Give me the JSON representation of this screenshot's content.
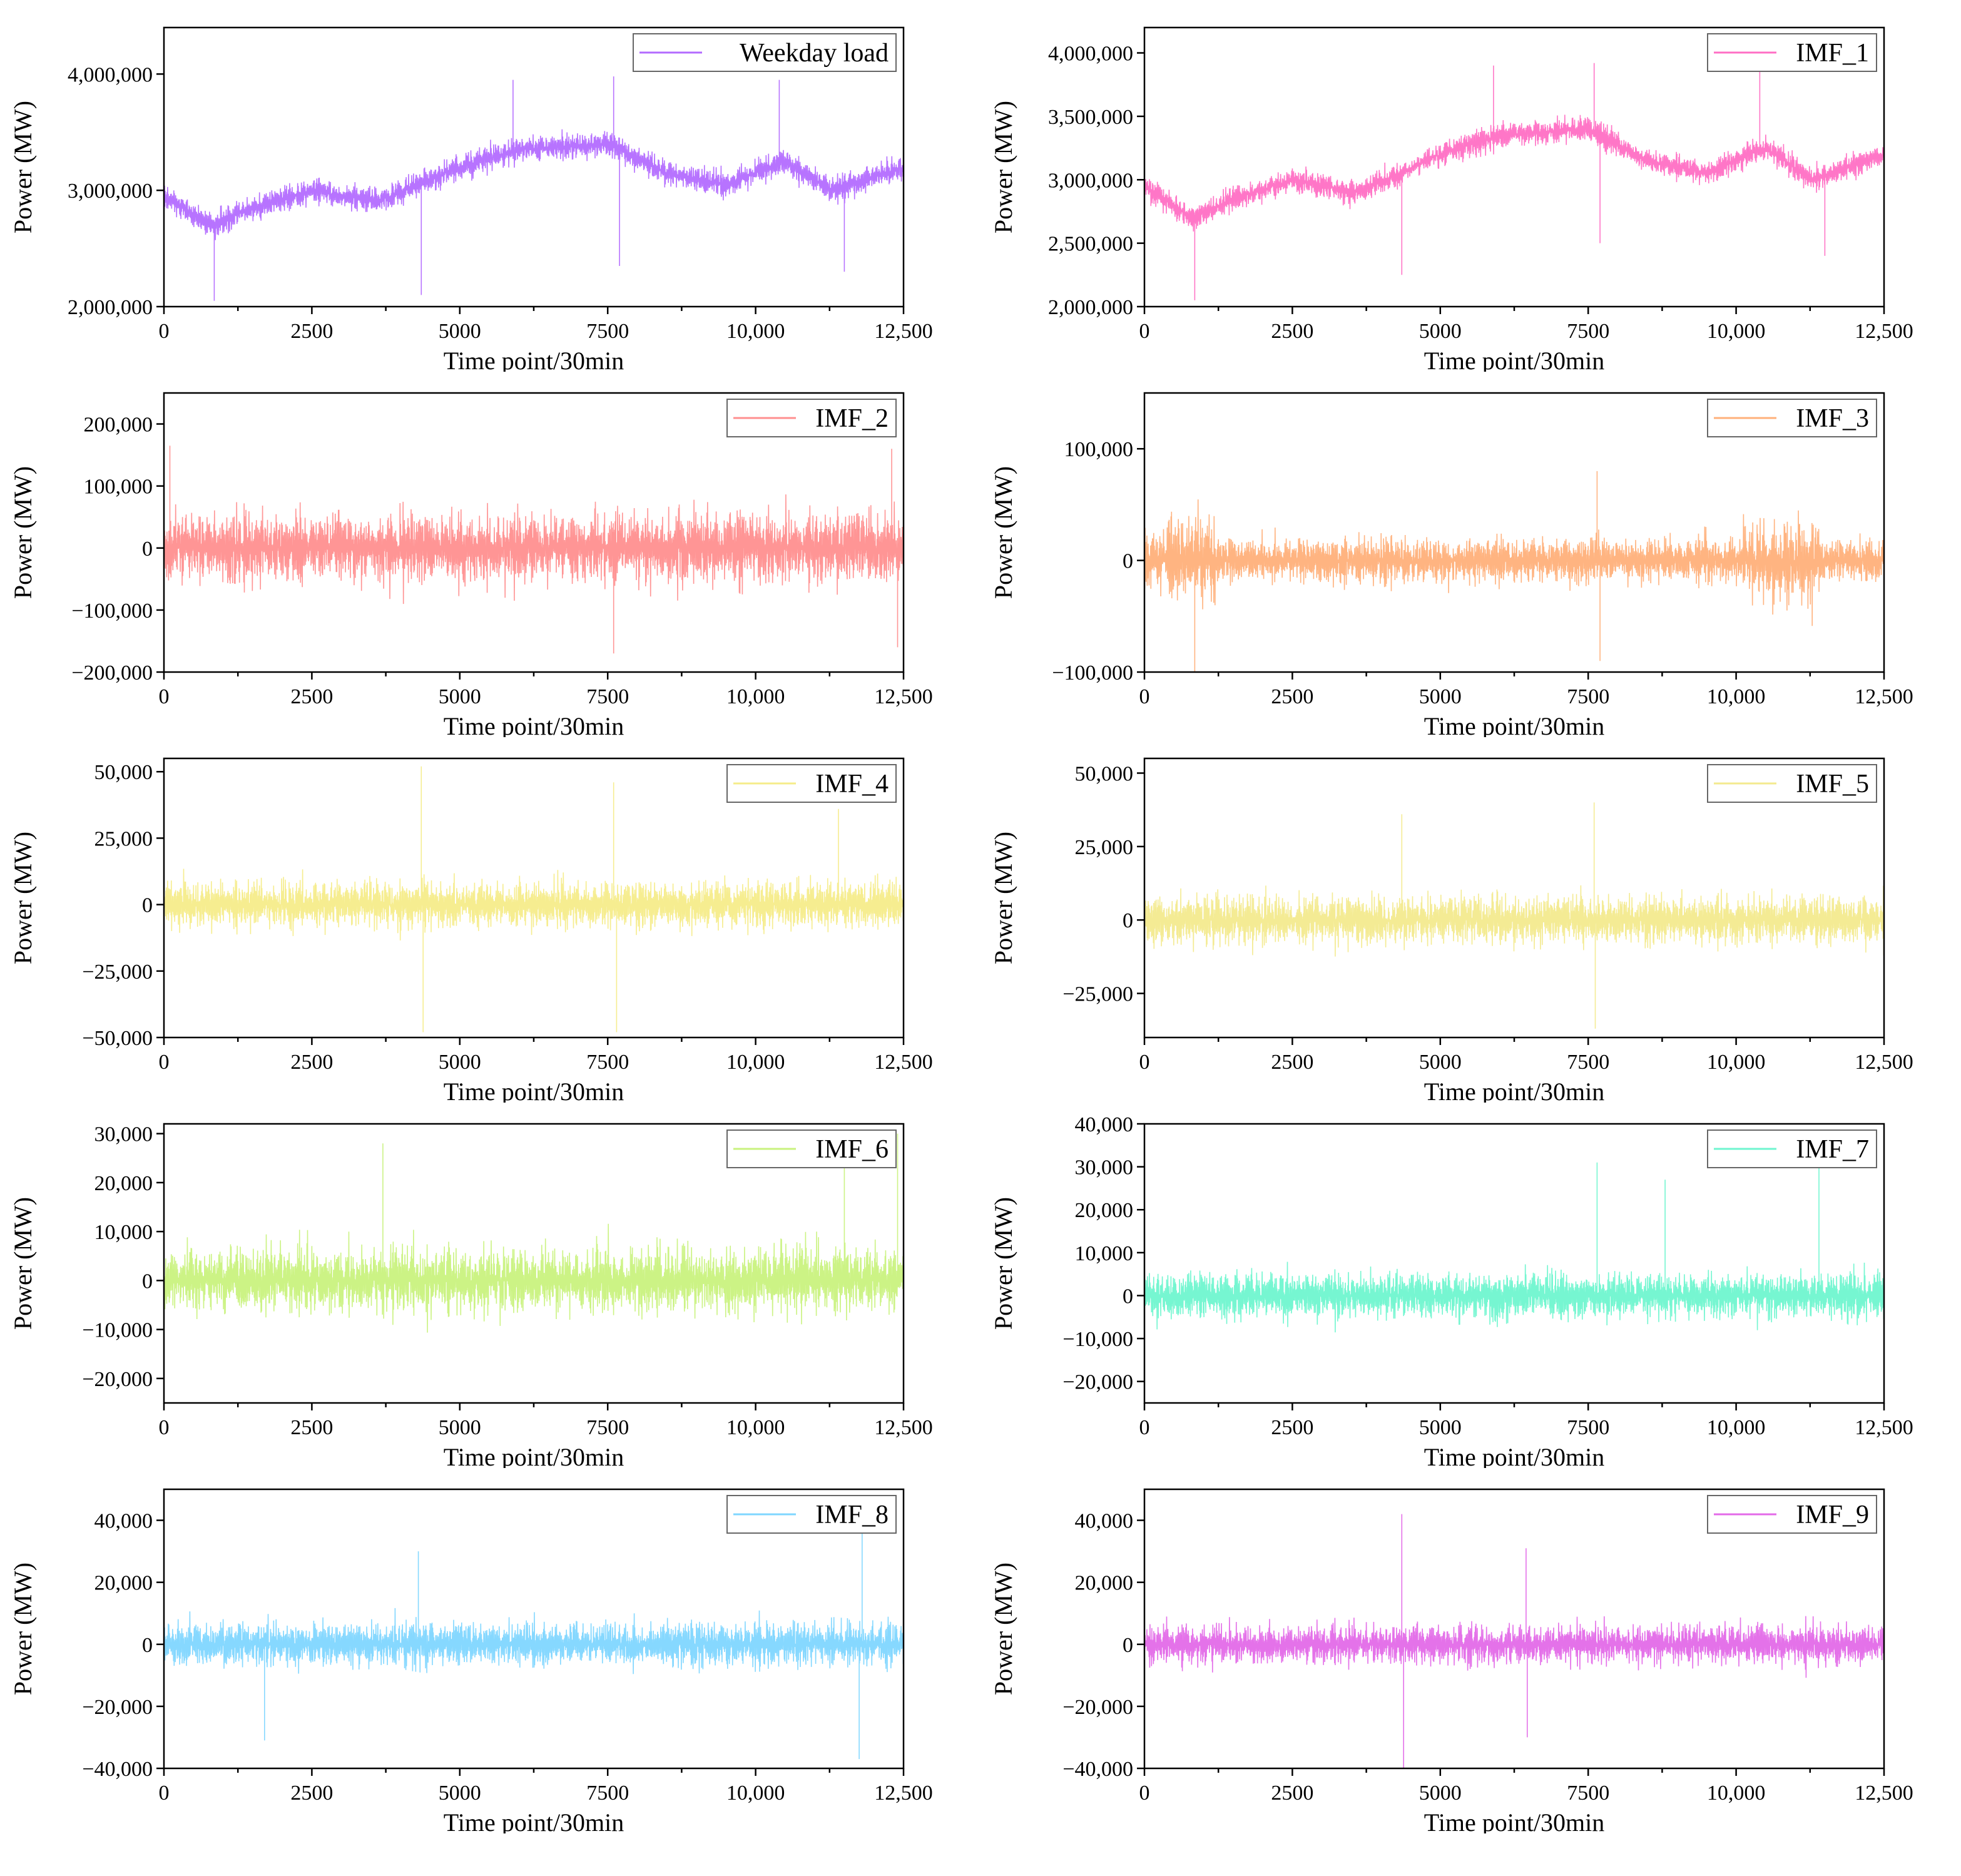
{
  "figure": {
    "shared_xlabel": "Time point/30min",
    "shared_ylabel": "Power (MW)"
  },
  "chart_data": [
    {
      "type": "line",
      "legend": "Weekday load",
      "color": "#b36bff",
      "xlabel": "Time point/30min",
      "ylabel": "Power (MW)",
      "xlim": [
        0,
        12500
      ],
      "ylim": [
        2000000,
        4400000
      ],
      "xticks": [
        0,
        2500,
        5000,
        7500,
        10000,
        12500
      ],
      "xtick_labels": [
        "0",
        "2500",
        "5000",
        "7500",
        "10,000",
        "12,500"
      ],
      "yticks": [
        2000000,
        3000000,
        4000000
      ],
      "ytick_labels": [
        "2,000,000",
        "3,000,000",
        "4,000,000"
      ],
      "legend_position": "top-right",
      "signal": {
        "trend_x": [
          0,
          800,
          1500,
          2500,
          3600,
          5000,
          6000,
          7500,
          8500,
          9500,
          10500,
          11300,
          12500
        ],
        "trend_y": [
          2950000,
          2700000,
          2850000,
          3000000,
          2900000,
          3200000,
          3350000,
          3400000,
          3150000,
          3050000,
          3250000,
          3000000,
          3200000
        ],
        "amplitude": 220000,
        "spikes": [
          [
            850,
            2050000
          ],
          [
            4350,
            2100000
          ],
          [
            7700,
            2350000
          ],
          [
            11500,
            2300000
          ],
          [
            5900,
            3950000
          ],
          [
            7600,
            3980000
          ],
          [
            10400,
            3950000
          ]
        ],
        "seed": 11
      }
    },
    {
      "type": "line",
      "legend": "IMF_1",
      "color": "#ff6fc4",
      "xlabel": "Time point/30min",
      "ylabel": "Power (MW)",
      "xlim": [
        0,
        12500
      ],
      "ylim": [
        2000000,
        4200000
      ],
      "xticks": [
        0,
        2500,
        5000,
        7500,
        10000,
        12500
      ],
      "xtick_labels": [
        "0",
        "2500",
        "5000",
        "7500",
        "10,000",
        "12,500"
      ],
      "yticks": [
        2000000,
        2500000,
        3000000,
        3500000,
        4000000
      ],
      "ytick_labels": [
        "2,000,000",
        "2,500,000",
        "3,000,000",
        "3,500,000",
        "4,000,000"
      ],
      "legend_position": "top-right",
      "signal": {
        "trend_x": [
          0,
          800,
          1500,
          2500,
          3600,
          5000,
          6000,
          7500,
          8500,
          9500,
          10500,
          11300,
          12500
        ],
        "trend_y": [
          2950000,
          2700000,
          2850000,
          3000000,
          2900000,
          3200000,
          3350000,
          3400000,
          3150000,
          3050000,
          3250000,
          3000000,
          3200000
        ],
        "amplitude": 200000,
        "spikes": [
          [
            850,
            2050000
          ],
          [
            4350,
            2250000
          ],
          [
            7700,
            2500000
          ],
          [
            11500,
            2400000
          ],
          [
            5900,
            3900000
          ],
          [
            7600,
            3920000
          ],
          [
            10400,
            3850000
          ]
        ],
        "seed": 23
      }
    },
    {
      "type": "line",
      "legend": "IMF_2",
      "color": "#ff8f8f",
      "xlabel": "Time point/30min",
      "ylabel": "Power (MW)",
      "xlim": [
        0,
        12500
      ],
      "ylim": [
        -200000,
        250000
      ],
      "xticks": [
        0,
        2500,
        5000,
        7500,
        10000,
        12500
      ],
      "xtick_labels": [
        "0",
        "2500",
        "5000",
        "7500",
        "10,000",
        "12,500"
      ],
      "yticks": [
        -200000,
        -100000,
        0,
        100000,
        200000
      ],
      "ytick_labels": [
        "−200,000",
        "−100,000",
        "0",
        "100,000",
        "200,000"
      ],
      "legend_position": "top-right",
      "signal": {
        "trend_x": [
          0,
          12500
        ],
        "trend_y": [
          0,
          0
        ],
        "amplitude": 115000,
        "spikes": [
          [
            7600,
            -170000
          ],
          [
            12300,
            160000
          ],
          [
            100,
            165000
          ],
          [
            12400,
            -160000
          ]
        ],
        "seed": 37
      }
    },
    {
      "type": "line",
      "legend": "IMF_3",
      "color": "#ffb07a",
      "xlabel": "Time point/30min",
      "ylabel": "Power (MW)",
      "xlim": [
        0,
        12500
      ],
      "ylim": [
        -100000,
        150000
      ],
      "xticks": [
        0,
        2500,
        5000,
        7500,
        10000,
        12500
      ],
      "xtick_labels": [
        "0",
        "2500",
        "5000",
        "7500",
        "10,000",
        "12,500"
      ],
      "yticks": [
        -100000,
        0,
        100000
      ],
      "ytick_labels": [
        "−100,000",
        "0",
        "100,000"
      ],
      "legend_position": "top-right",
      "signal": {
        "trend_x": [
          0,
          12500
        ],
        "trend_y": [
          0,
          0
        ],
        "amplitude": 40000,
        "bursts": [
          [
            0,
            1200,
            75000
          ],
          [
            10100,
            11400,
            75000
          ]
        ],
        "spikes": [
          [
            7650,
            80000
          ],
          [
            7700,
            -90000
          ],
          [
            850,
            -100000
          ]
        ],
        "seed": 41
      }
    },
    {
      "type": "line",
      "legend": "IMF_4",
      "color": "#f5ec8a",
      "xlabel": "Time point/30min",
      "ylabel": "Power (MW)",
      "xlim": [
        0,
        12500
      ],
      "ylim": [
        -50000,
        55000
      ],
      "xticks": [
        0,
        2500,
        5000,
        7500,
        10000,
        12500
      ],
      "xtick_labels": [
        "0",
        "2500",
        "5000",
        "7500",
        "10,000",
        "12,500"
      ],
      "yticks": [
        -50000,
        -25000,
        0,
        25000,
        50000
      ],
      "ytick_labels": [
        "−50,000",
        "−25,000",
        "0",
        "25,000",
        "50,000"
      ],
      "legend_position": "top-right",
      "signal": {
        "trend_x": [
          0,
          12500
        ],
        "trend_y": [
          0,
          0
        ],
        "amplitude": 18000,
        "spikes": [
          [
            4350,
            52000
          ],
          [
            4380,
            -48000
          ],
          [
            7600,
            46000
          ],
          [
            7650,
            -48000
          ],
          [
            11400,
            36000
          ]
        ],
        "seed": 53
      }
    },
    {
      "type": "line",
      "legend": "IMF_5",
      "color": "#f3ea8e",
      "xlabel": "Time point/30min",
      "ylabel": "Power (MW)",
      "xlim": [
        0,
        12500
      ],
      "ylim": [
        -40000,
        55000
      ],
      "xticks": [
        0,
        2500,
        5000,
        7500,
        10000,
        12500
      ],
      "xtick_labels": [
        "0",
        "2500",
        "5000",
        "7500",
        "10,000",
        "12,500"
      ],
      "yticks": [
        -25000,
        0,
        25000,
        50000
      ],
      "ytick_labels": [
        "−25,000",
        "0",
        "25,000",
        "50,000"
      ],
      "legend_position": "top-right",
      "signal": {
        "trend_x": [
          0,
          12500
        ],
        "trend_y": [
          0,
          0
        ],
        "amplitude": 17000,
        "spikes": [
          [
            7600,
            40000
          ],
          [
            7620,
            -37000
          ],
          [
            4350,
            36000
          ]
        ],
        "seed": 67
      }
    },
    {
      "type": "line",
      "legend": "IMF_6",
      "color": "#c9f27e",
      "xlabel": "Time point/30min",
      "ylabel": "Power (MW)",
      "xlim": [
        0,
        12500
      ],
      "ylim": [
        -25000,
        32000
      ],
      "xticks": [
        0,
        2500,
        5000,
        7500,
        10000,
        12500
      ],
      "xtick_labels": [
        "0",
        "2500",
        "5000",
        "7500",
        "10,000",
        "12,500"
      ],
      "yticks": [
        -20000,
        -10000,
        0,
        10000,
        20000,
        30000
      ],
      "ytick_labels": [
        "−20,000",
        "−10,000",
        "0",
        "10,000",
        "20,000",
        "30,000"
      ],
      "legend_position": "top-right",
      "signal": {
        "trend_x": [
          0,
          12500
        ],
        "trend_y": [
          0,
          0
        ],
        "amplitude": 14000,
        "spikes": [
          [
            3700,
            28000
          ],
          [
            12400,
            30000
          ],
          [
            11500,
            27000
          ]
        ],
        "seed": 79
      }
    },
    {
      "type": "line",
      "legend": "IMF_7",
      "color": "#6ff5cf",
      "xlabel": "Time point/30min",
      "ylabel": "Power (MW)",
      "xlim": [
        0,
        12500
      ],
      "ylim": [
        -25000,
        40000
      ],
      "xticks": [
        0,
        2500,
        5000,
        7500,
        10000,
        12500
      ],
      "xtick_labels": [
        "0",
        "2500",
        "5000",
        "7500",
        "10,000",
        "12,500"
      ],
      "yticks": [
        -20000,
        -10000,
        0,
        10000,
        20000,
        30000,
        40000
      ],
      "ytick_labels": [
        "−20,000",
        "−10,000",
        "0",
        "10,000",
        "20,000",
        "30,000",
        "40,000"
      ],
      "legend_position": "top-right",
      "signal": {
        "trend_x": [
          0,
          12500
        ],
        "trend_y": [
          0,
          0
        ],
        "amplitude": 11000,
        "spikes": [
          [
            7650,
            31000
          ],
          [
            11400,
            30000
          ],
          [
            8800,
            27000
          ]
        ],
        "seed": 83
      }
    },
    {
      "type": "line",
      "legend": "IMF_8",
      "color": "#7fd6ff",
      "xlabel": "Time point/30min",
      "ylabel": "Power (MW)",
      "xlim": [
        0,
        12500
      ],
      "ylim": [
        -40000,
        50000
      ],
      "xticks": [
        0,
        2500,
        5000,
        7500,
        10000,
        12500
      ],
      "xtick_labels": [
        "0",
        "2500",
        "5000",
        "7500",
        "10,000",
        "12,500"
      ],
      "yticks": [
        -40000,
        -20000,
        0,
        20000,
        40000
      ],
      "ytick_labels": [
        "−40,000",
        "−20,000",
        "0",
        "20,000",
        "40,000"
      ],
      "legend_position": "top-right",
      "signal": {
        "trend_x": [
          0,
          12500
        ],
        "trend_y": [
          0,
          0
        ],
        "amplitude": 14000,
        "spikes": [
          [
            11800,
            40000
          ],
          [
            11750,
            -37000
          ],
          [
            4300,
            30000
          ],
          [
            1700,
            -31000
          ]
        ],
        "seed": 97
      }
    },
    {
      "type": "line",
      "legend": "IMF_9",
      "color": "#e36ae8",
      "xlabel": "Time point/30min",
      "ylabel": "Power (MW)",
      "xlim": [
        0,
        12500
      ],
      "ylim": [
        -40000,
        50000
      ],
      "xticks": [
        0,
        2500,
        5000,
        7500,
        10000,
        12500
      ],
      "xtick_labels": [
        "0",
        "2500",
        "5000",
        "7500",
        "10,000",
        "12,500"
      ],
      "yticks": [
        -40000,
        -20000,
        0,
        20000,
        40000
      ],
      "ytick_labels": [
        "−40,000",
        "−20,000",
        "0",
        "20,000",
        "40,000"
      ],
      "legend_position": "top-right",
      "signal": {
        "trend_x": [
          0,
          12500
        ],
        "trend_y": [
          0,
          0
        ],
        "amplitude": 13000,
        "spikes": [
          [
            4350,
            42000
          ],
          [
            4380,
            -40000
          ],
          [
            6450,
            31000
          ],
          [
            6470,
            -30000
          ]
        ],
        "seed": 101
      }
    }
  ]
}
